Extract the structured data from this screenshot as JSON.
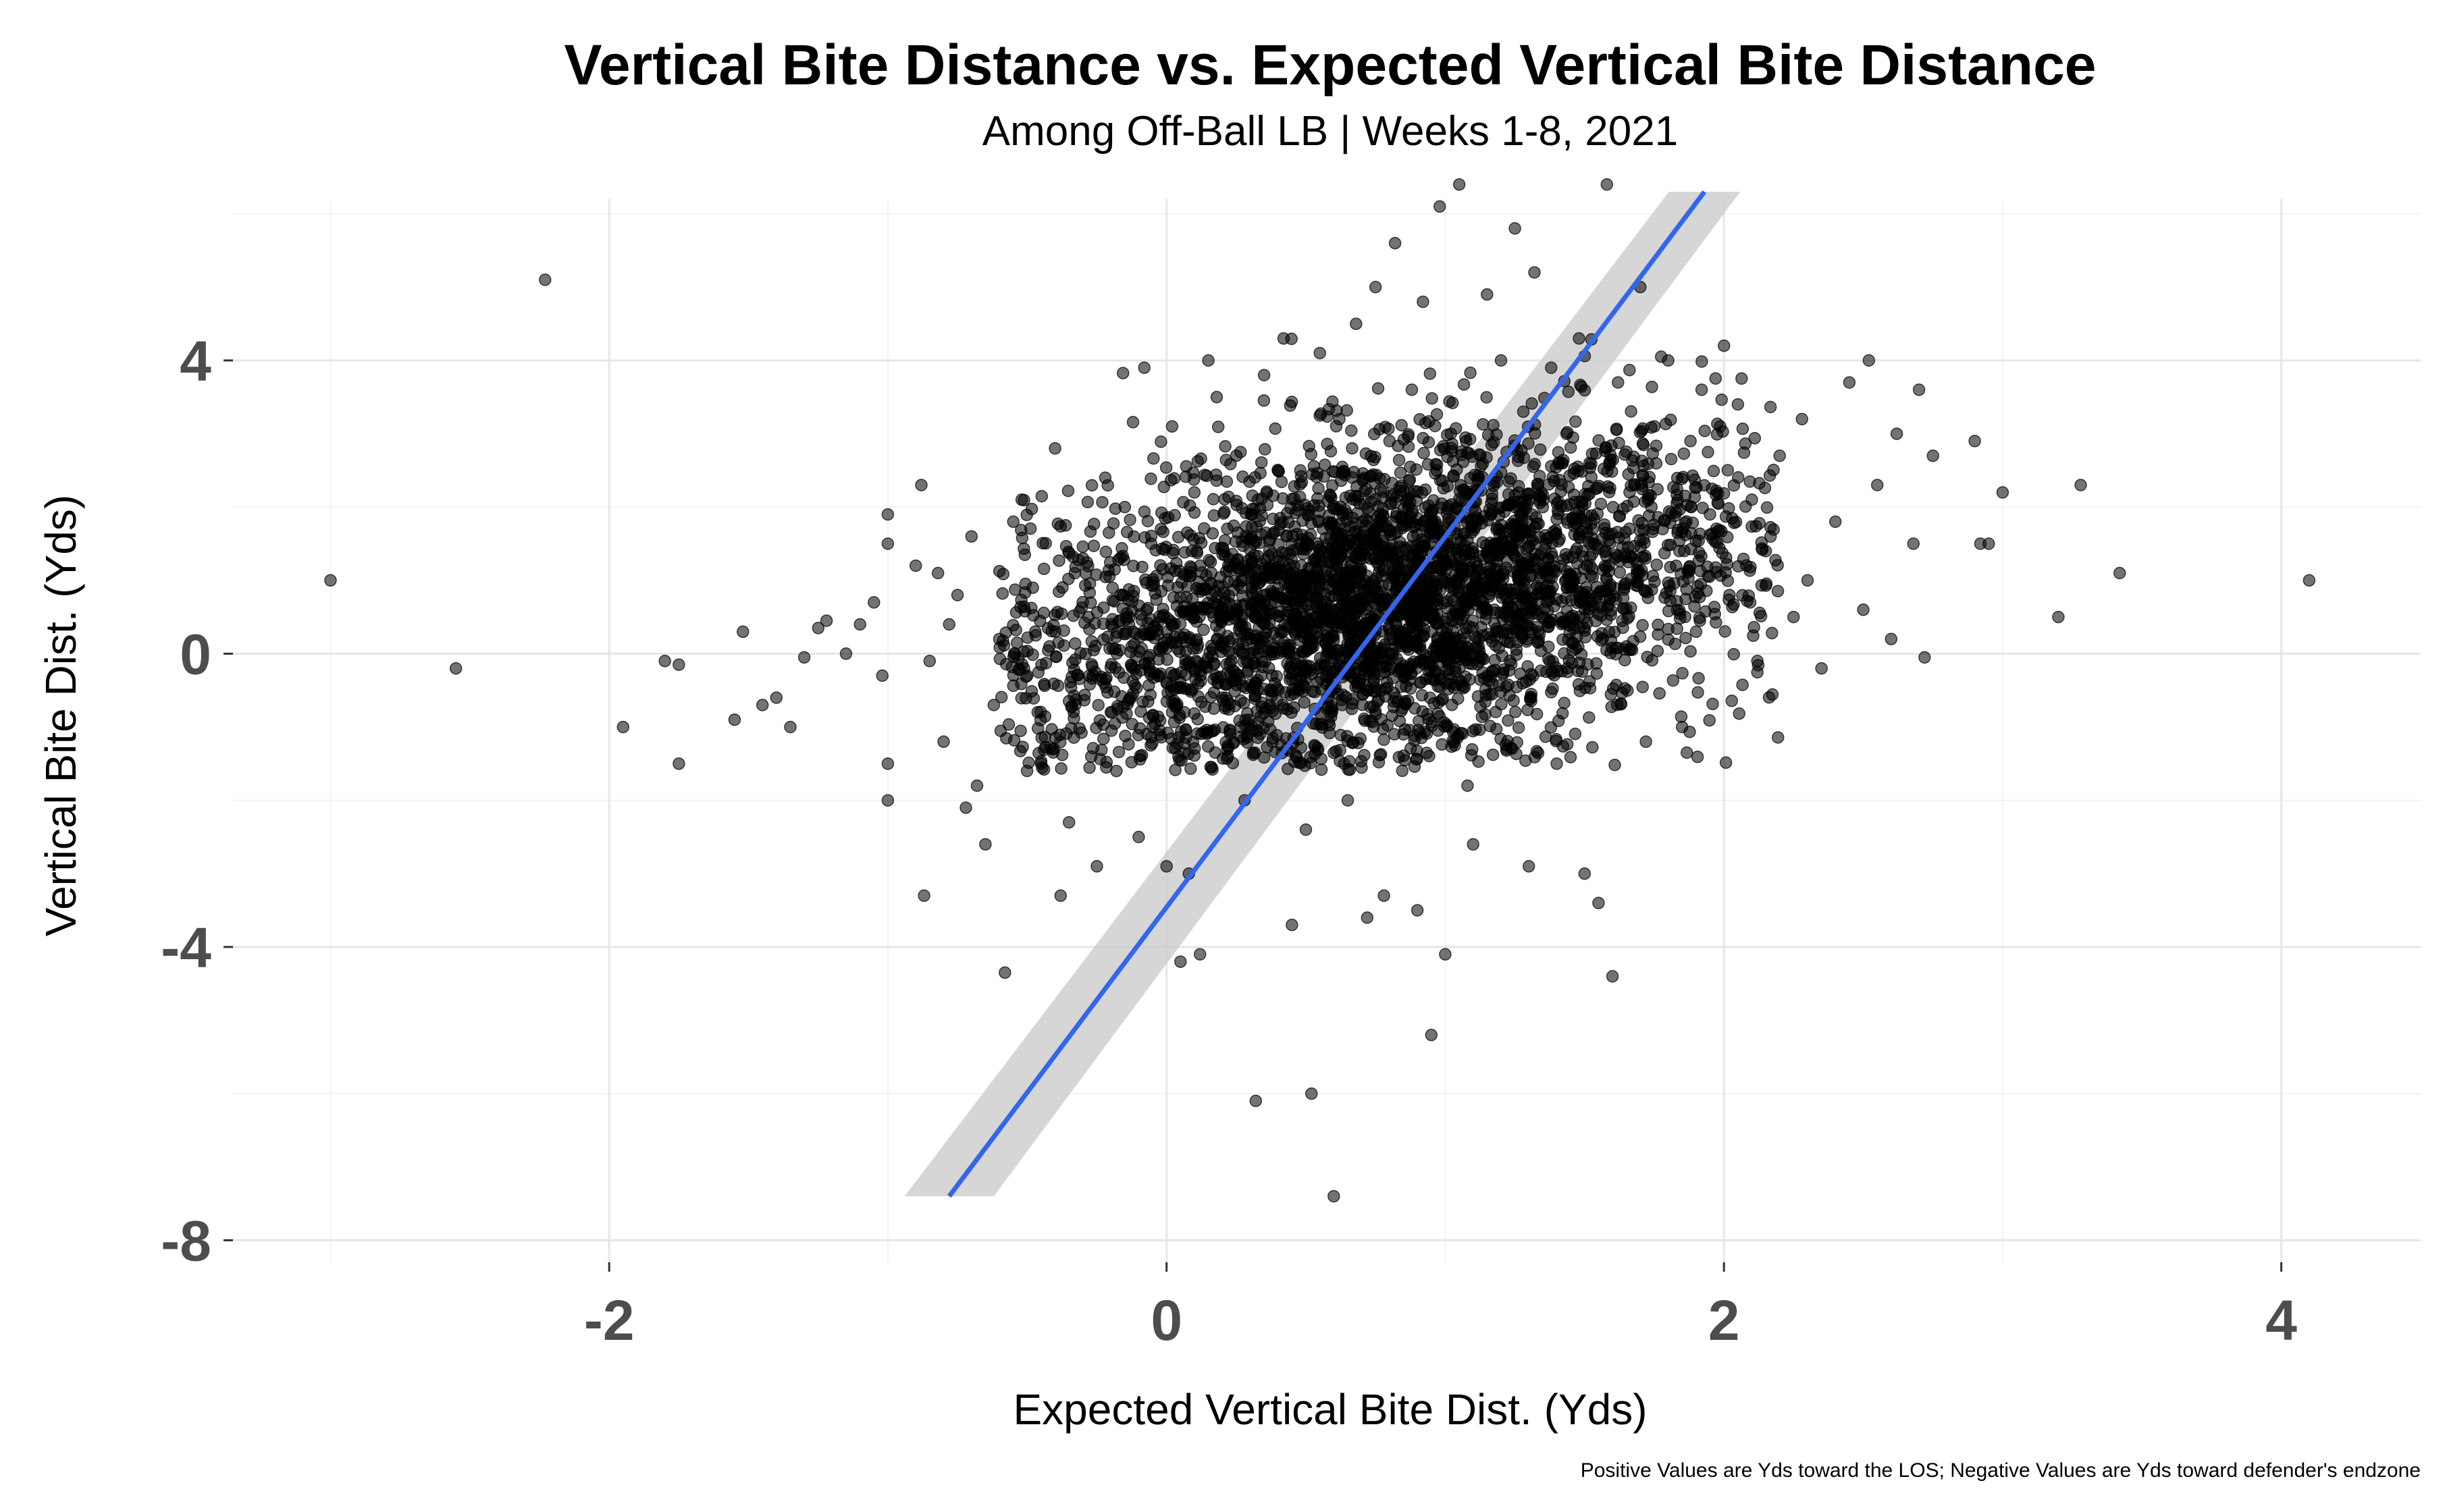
{
  "chart_data": {
    "type": "scatter",
    "title": "Vertical Bite Distance vs. Expected Vertical Bite Distance",
    "subtitle": "Among Off-Ball LB | Weeks 1-8, 2021",
    "xlabel": "Expected Vertical Bite Dist. (Yds)",
    "ylabel": "Vertical Bite Dist. (Yds)",
    "caption": "Positive Values are Yds toward the LOS; Negative Values are Yds toward defender's endzone",
    "xlim": [
      -3.35,
      4.5
    ],
    "ylim": [
      -8.3,
      6.2
    ],
    "x_ticks": [
      -2,
      0,
      2,
      4
    ],
    "x_tick_labels": [
      "-2",
      "0",
      "2",
      "4"
    ],
    "y_ticks": [
      -8,
      -4,
      0,
      4
    ],
    "y_tick_labels": [
      "-8",
      "-4",
      "0",
      "4"
    ],
    "grid": true,
    "point_color": "#000000",
    "point_opacity": 0.55,
    "trend_color": "#3366ee",
    "band_color": "#c8c8c8",
    "trend_line": {
      "method": "linear",
      "x_start": -0.78,
      "y_start": -7.4,
      "x_end": 1.93,
      "y_end": 6.3,
      "band_halfwidth": 0.16
    },
    "points": [
      [
        -3.0,
        1.0
      ],
      [
        -2.55,
        -0.2
      ],
      [
        -2.23,
        5.1
      ],
      [
        -1.95,
        -1.0
      ],
      [
        -1.8,
        -0.1
      ],
      [
        -1.75,
        -1.5
      ],
      [
        -1.75,
        -0.15
      ],
      [
        -1.55,
        -0.9
      ],
      [
        -1.52,
        0.3
      ],
      [
        -1.45,
        -0.7
      ],
      [
        -1.4,
        -0.6
      ],
      [
        -1.35,
        -1.0
      ],
      [
        -1.3,
        -0.05
      ],
      [
        -1.25,
        0.35
      ],
      [
        -1.22,
        0.45
      ],
      [
        -1.15,
        0.0
      ],
      [
        -1.1,
        0.4
      ],
      [
        -1.05,
        0.7
      ],
      [
        -1.02,
        -0.3
      ],
      [
        -1.0,
        -1.5
      ],
      [
        -1.0,
        -2.0
      ],
      [
        -1.0,
        1.9
      ],
      [
        -1.0,
        1.5
      ],
      [
        -0.9,
        1.2
      ],
      [
        -0.88,
        2.3
      ],
      [
        -0.87,
        -3.3
      ],
      [
        -0.85,
        -0.1
      ],
      [
        -0.82,
        1.1
      ],
      [
        -0.8,
        -1.2
      ],
      [
        -0.78,
        0.4
      ],
      [
        -0.75,
        0.8
      ],
      [
        -0.72,
        -2.1
      ],
      [
        -0.7,
        1.6
      ],
      [
        -0.68,
        -1.8
      ],
      [
        -0.65,
        -2.6
      ],
      [
        -0.62,
        -0.7
      ],
      [
        -0.6,
        0.2
      ],
      [
        -0.58,
        -4.35
      ],
      [
        -0.55,
        1.8
      ],
      [
        -0.52,
        2.1
      ],
      [
        -0.5,
        -0.3
      ],
      [
        -0.48,
        0.9
      ],
      [
        -0.45,
        -1.5
      ],
      [
        -0.42,
        0.1
      ],
      [
        -0.4,
        2.8
      ],
      [
        -0.38,
        -3.3
      ],
      [
        -0.35,
        -2.3
      ],
      [
        -0.3,
        1.3
      ],
      [
        -0.28,
        0.5
      ],
      [
        -0.25,
        -2.9
      ],
      [
        -0.22,
        2.4
      ],
      [
        -0.2,
        -0.8
      ],
      [
        -0.18,
        -1.6
      ],
      [
        -0.15,
        2.0
      ],
      [
        -0.12,
        0.3
      ],
      [
        -0.1,
        -2.5
      ],
      [
        -0.08,
        3.9
      ],
      [
        -0.05,
        -1.0
      ],
      [
        -0.02,
        1.7
      ],
      [
        0.0,
        -0.4
      ],
      [
        0.0,
        -2.9
      ],
      [
        0.02,
        3.1
      ],
      [
        0.05,
        -4.2
      ],
      [
        0.08,
        -3.0
      ],
      [
        0.1,
        2.2
      ],
      [
        0.12,
        -4.1
      ],
      [
        0.15,
        4.0
      ],
      [
        0.18,
        3.5
      ],
      [
        0.2,
        -0.6
      ],
      [
        0.22,
        -1.4
      ],
      [
        0.25,
        2.7
      ],
      [
        0.28,
        -2.0
      ],
      [
        0.3,
        1.1
      ],
      [
        0.32,
        -6.1
      ],
      [
        0.35,
        3.8
      ],
      [
        0.38,
        -1.2
      ],
      [
        0.4,
        0.9
      ],
      [
        0.42,
        4.3
      ],
      [
        0.45,
        -3.7
      ],
      [
        0.48,
        2.5
      ],
      [
        0.5,
        -2.4
      ],
      [
        0.52,
        -6.0
      ],
      [
        0.55,
        4.1
      ],
      [
        0.58,
        0.2
      ],
      [
        0.6,
        -7.4
      ],
      [
        0.62,
        3.2
      ],
      [
        0.65,
        -2.0
      ],
      [
        0.68,
        4.5
      ],
      [
        0.7,
        1.6
      ],
      [
        0.72,
        -3.6
      ],
      [
        0.75,
        5.0
      ],
      [
        0.78,
        -3.3
      ],
      [
        0.8,
        2.9
      ],
      [
        0.82,
        5.6
      ],
      [
        0.85,
        -1.1
      ],
      [
        0.88,
        3.6
      ],
      [
        0.9,
        -3.5
      ],
      [
        0.92,
        4.8
      ],
      [
        0.95,
        -5.2
      ],
      [
        0.98,
        6.1
      ],
      [
        1.0,
        -4.1
      ],
      [
        1.02,
        3.0
      ],
      [
        1.05,
        6.4
      ],
      [
        1.08,
        -1.8
      ],
      [
        1.1,
        -2.6
      ],
      [
        1.12,
        2.4
      ],
      [
        1.15,
        4.9
      ],
      [
        1.18,
        1.5
      ],
      [
        1.2,
        4.0
      ],
      [
        1.22,
        -1.3
      ],
      [
        1.25,
        5.8
      ],
      [
        1.28,
        3.3
      ],
      [
        1.3,
        -2.9
      ],
      [
        1.32,
        5.2
      ],
      [
        1.35,
        2.0
      ],
      [
        1.38,
        3.9
      ],
      [
        1.4,
        -1.5
      ],
      [
        1.42,
        2.6
      ],
      [
        1.45,
        0.5
      ],
      [
        1.48,
        4.3
      ],
      [
        1.5,
        -3.0
      ],
      [
        1.52,
        1.2
      ],
      [
        1.55,
        -3.4
      ],
      [
        1.58,
        6.4
      ],
      [
        1.6,
        -4.4
      ],
      [
        1.62,
        3.7
      ],
      [
        1.65,
        0.1
      ],
      [
        1.68,
        2.3
      ],
      [
        1.7,
        5.0
      ],
      [
        1.72,
        -1.2
      ],
      [
        1.75,
        3.1
      ],
      [
        1.78,
        1.7
      ],
      [
        1.8,
        4.0
      ],
      [
        1.85,
        -1.0
      ],
      [
        1.88,
        2.9
      ],
      [
        1.9,
        0.3
      ],
      [
        1.92,
        3.6
      ],
      [
        1.95,
        1.9
      ],
      [
        2.0,
        4.2
      ],
      [
        2.02,
        0.8
      ],
      [
        2.05,
        3.4
      ],
      [
        2.1,
        2.1
      ],
      [
        2.12,
        -0.1
      ],
      [
        2.15,
        1.4
      ],
      [
        2.2,
        2.7
      ],
      [
        2.25,
        0.5
      ],
      [
        2.28,
        3.2
      ],
      [
        2.3,
        1.0
      ],
      [
        2.35,
        -0.2
      ],
      [
        2.4,
        1.8
      ],
      [
        2.45,
        3.7
      ],
      [
        2.5,
        0.6
      ],
      [
        2.52,
        4.0
      ],
      [
        2.55,
        2.3
      ],
      [
        2.6,
        0.2
      ],
      [
        2.62,
        3.0
      ],
      [
        2.68,
        1.5
      ],
      [
        2.7,
        3.6
      ],
      [
        2.72,
        -0.05
      ],
      [
        2.75,
        2.7
      ],
      [
        2.9,
        2.9
      ],
      [
        2.92,
        1.5
      ],
      [
        2.95,
        1.5
      ],
      [
        3.0,
        2.2
      ],
      [
        3.2,
        0.5
      ],
      [
        3.28,
        2.3
      ],
      [
        3.42,
        1.1
      ],
      [
        4.1,
        1.0
      ]
    ],
    "cluster": {
      "count": 3800,
      "x_mean": 0.8,
      "x_sd": 0.62,
      "y_intercept": 0.35,
      "y_slope": 0.6,
      "y_sd": 1.05
    }
  }
}
